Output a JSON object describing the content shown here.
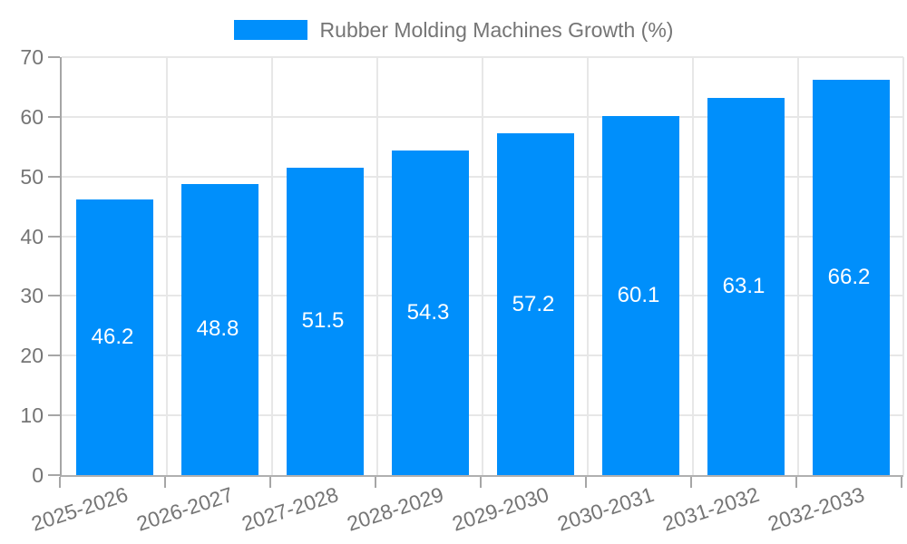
{
  "legend": {
    "label": "Rubber Molding Machines Growth (%)"
  },
  "chart_data": {
    "type": "bar",
    "title": "Rubber Molding Machines Growth (%)",
    "categories": [
      "2025-2026",
      "2026-2027",
      "2027-2028",
      "2028-2029",
      "2029-2030",
      "2030-2031",
      "2031-2032",
      "2032-2033"
    ],
    "series": [
      {
        "name": "Rubber Molding Machines Growth (%)",
        "values": [
          46.2,
          48.8,
          51.5,
          54.3,
          57.2,
          60.1,
          63.1,
          66.2
        ]
      }
    ],
    "xlabel": "",
    "ylabel": "",
    "ylim": [
      0,
      70
    ],
    "yticks": [
      0,
      10,
      20,
      30,
      40,
      50,
      60,
      70
    ],
    "grid": true,
    "legend_position": "top",
    "x_label_rotation_deg": -18,
    "colors": {
      "bar": "#008FFB",
      "value_label": "#ffffff",
      "tick_label": "#757575",
      "legend_label": "#757575",
      "axis_line": "#a6a6a6",
      "gridline": "#e7e7e7"
    }
  }
}
